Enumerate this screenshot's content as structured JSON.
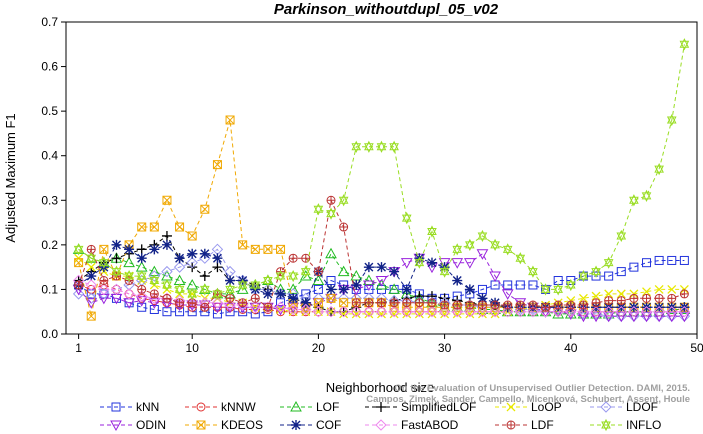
{
  "chart_data": {
    "type": "line",
    "title": "Parkinson_withoutdupl_05_v02",
    "xlabel": "Neighborhood size",
    "ylabel": "Adjusted Maximum F1",
    "xlim": [
      0,
      50
    ],
    "ylim": [
      0,
      0.7
    ],
    "xticks": [
      1,
      10,
      20,
      30,
      40,
      50
    ],
    "yticks": [
      0.0,
      0.1,
      0.2,
      0.3,
      0.4,
      0.5,
      0.6,
      0.7
    ],
    "xtick_labels": [
      "1",
      "10",
      "20",
      "30",
      "40",
      "50"
    ],
    "ytick_labels": [
      "0.0",
      "0.1",
      "0.2",
      "0.3",
      "0.4",
      "0.5",
      "0.6",
      "0.7"
    ],
    "x": [
      1,
      2,
      3,
      4,
      5,
      6,
      7,
      8,
      9,
      10,
      11,
      12,
      13,
      14,
      15,
      16,
      17,
      18,
      19,
      20,
      21,
      22,
      23,
      24,
      25,
      26,
      27,
      28,
      29,
      30,
      31,
      32,
      33,
      34,
      35,
      36,
      37,
      38,
      39,
      40,
      41,
      42,
      43,
      44,
      45,
      46,
      47,
      48,
      49
    ],
    "legend_position": "bottom",
    "series": [
      {
        "name": "kNN",
        "color": "#2233dd",
        "marker": "square",
        "values": [
          0.11,
          0.09,
          0.09,
          0.08,
          0.07,
          0.06,
          0.055,
          0.05,
          0.05,
          0.05,
          0.05,
          0.045,
          0.05,
          0.05,
          0.045,
          0.05,
          0.07,
          0.08,
          0.09,
          0.1,
          0.12,
          0.11,
          0.1,
          0.1,
          0.1,
          0.1,
          0.1,
          0.09,
          0.08,
          0.08,
          0.085,
          0.09,
          0.1,
          0.11,
          0.11,
          0.11,
          0.11,
          0.1,
          0.12,
          0.12,
          0.13,
          0.13,
          0.13,
          0.14,
          0.15,
          0.16,
          0.165,
          0.165,
          0.165
        ]
      },
      {
        "name": "kNNW",
        "color": "#e03030",
        "marker": "circle",
        "values": [
          0.11,
          0.1,
          0.11,
          0.1,
          0.09,
          0.08,
          0.075,
          0.07,
          0.065,
          0.06,
          0.06,
          0.06,
          0.06,
          0.055,
          0.055,
          0.055,
          0.05,
          0.05,
          0.05,
          0.05,
          0.05,
          0.05,
          0.05,
          0.05,
          0.05,
          0.05,
          0.05,
          0.05,
          0.05,
          0.05,
          0.05,
          0.05,
          0.05,
          0.05,
          0.05,
          0.05,
          0.05,
          0.05,
          0.05,
          0.05,
          0.05,
          0.05,
          0.05,
          0.05,
          0.05,
          0.05,
          0.05,
          0.05,
          0.06
        ]
      },
      {
        "name": "LOF",
        "color": "#22bb22",
        "marker": "triangle-up",
        "values": [
          0.19,
          0.17,
          0.16,
          0.17,
          0.16,
          0.15,
          0.14,
          0.13,
          0.12,
          0.11,
          0.1,
          0.09,
          0.09,
          0.1,
          0.11,
          0.12,
          0.1,
          0.1,
          0.13,
          0.12,
          0.18,
          0.14,
          0.13,
          0.12,
          0.11,
          0.1,
          0.09,
          0.08,
          0.07,
          0.06,
          0.06,
          0.06,
          0.055,
          0.055,
          0.05,
          0.05,
          0.05,
          0.05,
          0.045,
          0.045,
          0.045,
          0.045,
          0.045,
          0.05,
          0.05,
          0.05,
          0.05,
          0.055,
          0.055
        ]
      },
      {
        "name": "SimplifiedLOF",
        "color": "#000000",
        "marker": "plus",
        "values": [
          0.12,
          0.14,
          0.16,
          0.17,
          0.18,
          0.19,
          0.2,
          0.22,
          0.17,
          0.15,
          0.13,
          0.15,
          0.12,
          0.12,
          0.11,
          0.1,
          0.09,
          0.08,
          0.07,
          0.06,
          0.05,
          0.05,
          0.06,
          0.07,
          0.07,
          0.075,
          0.08,
          0.085,
          0.085,
          0.08,
          0.075,
          0.07,
          0.065,
          0.065,
          0.06,
          0.06,
          0.06,
          0.06,
          0.06,
          0.06,
          0.06,
          0.06,
          0.06,
          0.06,
          0.06,
          0.06,
          0.06,
          0.06,
          0.06
        ]
      },
      {
        "name": "LoOP",
        "color": "#e8e800",
        "marker": "x",
        "values": [
          0.17,
          0.15,
          0.14,
          0.13,
          0.13,
          0.12,
          0.11,
          0.1,
          0.09,
          0.09,
          0.08,
          0.08,
          0.07,
          0.07,
          0.06,
          0.06,
          0.055,
          0.05,
          0.05,
          0.05,
          0.05,
          0.045,
          0.045,
          0.045,
          0.045,
          0.045,
          0.045,
          0.045,
          0.045,
          0.045,
          0.045,
          0.045,
          0.045,
          0.045,
          0.05,
          0.055,
          0.06,
          0.065,
          0.07,
          0.075,
          0.08,
          0.085,
          0.09,
          0.09,
          0.09,
          0.095,
          0.1,
          0.1,
          0.1
        ]
      },
      {
        "name": "LDOF",
        "color": "#9999ee",
        "marker": "diamond",
        "values": [
          0.09,
          0.08,
          0.09,
          0.1,
          0.11,
          0.12,
          0.13,
          0.14,
          0.15,
          0.16,
          0.17,
          0.19,
          0.14,
          0.12,
          0.1,
          0.1,
          0.09,
          0.09,
          0.08,
          0.08,
          0.08,
          0.08,
          0.08,
          0.08,
          0.08,
          0.075,
          0.075,
          0.07,
          0.07,
          0.07,
          0.065,
          0.065,
          0.06,
          0.06,
          0.06,
          0.055,
          0.055,
          0.05,
          0.05,
          0.05,
          0.045,
          0.045,
          0.04,
          0.04,
          0.04,
          0.04,
          0.04,
          0.04,
          0.04
        ]
      },
      {
        "name": "ODIN",
        "color": "#9922dd",
        "marker": "triangle-down",
        "values": [
          0.1,
          0.07,
          0.08,
          0.08,
          0.07,
          0.075,
          0.07,
          0.07,
          0.065,
          0.065,
          0.065,
          0.06,
          0.06,
          0.06,
          0.06,
          0.06,
          0.055,
          0.06,
          0.06,
          0.07,
          0.08,
          0.1,
          0.1,
          0.11,
          0.12,
          0.14,
          0.16,
          0.17,
          0.15,
          0.16,
          0.16,
          0.16,
          0.18,
          0.13,
          0.09,
          0.07,
          0.06,
          0.05,
          0.05,
          0.045,
          0.04,
          0.04,
          0.04,
          0.04,
          0.04,
          0.04,
          0.04,
          0.04,
          0.04
        ]
      },
      {
        "name": "KDEOS",
        "color": "#f0a800",
        "marker": "square-x",
        "values": [
          0.16,
          0.04,
          0.19,
          0.13,
          0.2,
          0.24,
          0.24,
          0.3,
          0.24,
          0.22,
          0.28,
          0.38,
          0.48,
          0.2,
          0.19,
          0.19,
          0.19,
          0.07,
          0.06,
          0.07,
          0.08,
          0.07,
          0.07,
          0.07,
          0.07,
          0.06,
          0.06,
          0.06,
          0.06,
          0.06,
          0.06,
          0.06,
          0.06,
          0.06,
          0.06,
          0.06,
          0.06,
          0.06,
          0.06,
          0.06,
          0.06,
          0.06,
          0.06,
          0.06,
          0.06,
          0.06,
          0.06,
          0.06,
          0.06
        ]
      },
      {
        "name": "COF",
        "color": "#112288",
        "marker": "asterisk",
        "values": [
          0.11,
          0.13,
          0.15,
          0.2,
          0.19,
          0.17,
          0.19,
          0.2,
          0.17,
          0.18,
          0.18,
          0.17,
          0.12,
          0.12,
          0.1,
          0.09,
          0.09,
          0.08,
          0.07,
          0.14,
          0.1,
          0.1,
          0.11,
          0.15,
          0.15,
          0.14,
          0.1,
          0.17,
          0.16,
          0.15,
          0.12,
          0.1,
          0.08,
          0.07,
          0.06,
          0.06,
          0.06,
          0.06,
          0.06,
          0.06,
          0.06,
          0.06,
          0.06,
          0.06,
          0.06,
          0.06,
          0.06,
          0.06,
          0.06
        ]
      },
      {
        "name": "FastABOD",
        "color": "#ee88ee",
        "marker": "diamond",
        "values": [
          0.12,
          0.11,
          0.1,
          0.1,
          0.09,
          0.085,
          0.08,
          0.08,
          0.075,
          0.07,
          0.07,
          0.07,
          0.065,
          0.065,
          0.06,
          0.06,
          0.06,
          0.055,
          0.055,
          0.05,
          0.05,
          0.05,
          0.05,
          0.05,
          0.05,
          0.05,
          0.05,
          0.05,
          0.05,
          0.05,
          0.05,
          0.05,
          0.05,
          0.05,
          0.05,
          0.05,
          0.05,
          0.05,
          0.05,
          0.05,
          0.05,
          0.05,
          0.05,
          0.05,
          0.05,
          0.05,
          0.05,
          0.05,
          0.05
        ]
      },
      {
        "name": "LDF",
        "color": "#bb3333",
        "marker": "circle-plus",
        "values": [
          0.11,
          0.19,
          0.12,
          0.13,
          0.12,
          0.1,
          0.09,
          0.08,
          0.07,
          0.07,
          0.06,
          0.09,
          0.08,
          0.07,
          0.08,
          0.06,
          0.14,
          0.17,
          0.17,
          0.14,
          0.3,
          0.24,
          0.07,
          0.07,
          0.07,
          0.07,
          0.07,
          0.07,
          0.07,
          0.065,
          0.065,
          0.065,
          0.065,
          0.065,
          0.065,
          0.065,
          0.065,
          0.06,
          0.065,
          0.065,
          0.065,
          0.07,
          0.075,
          0.075,
          0.08,
          0.08,
          0.08,
          0.08,
          0.09
        ]
      },
      {
        "name": "INFLO",
        "color": "#99dd22",
        "marker": "star",
        "values": [
          0.19,
          0.17,
          0.16,
          0.14,
          0.13,
          0.13,
          0.12,
          0.11,
          0.1,
          0.09,
          0.1,
          0.09,
          0.1,
          0.11,
          0.11,
          0.12,
          0.13,
          0.13,
          0.14,
          0.28,
          0.27,
          0.3,
          0.42,
          0.42,
          0.42,
          0.42,
          0.26,
          0.16,
          0.23,
          0.14,
          0.19,
          0.2,
          0.22,
          0.2,
          0.19,
          0.17,
          0.14,
          0.1,
          0.1,
          0.11,
          0.13,
          0.14,
          0.16,
          0.22,
          0.3,
          0.31,
          0.37,
          0.48,
          0.65
        ]
      }
    ]
  },
  "credit": {
    "line1": "Campos, Zimek, Sander, Campello, Micenková, Schubert, Assent, Houle",
    "line2": "On the Evaluation of Unsupervised Outlier Detection. DAMI, 2015."
  }
}
